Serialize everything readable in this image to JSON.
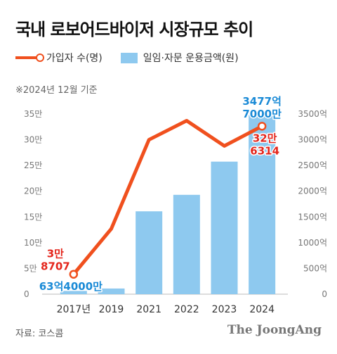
{
  "title": "국내 로보어드바이저 시장규모 추이",
  "legend": {
    "line_label": "가입자 수(명)",
    "bar_label": "일임·자문 운용금액(원)"
  },
  "note": "※2024년 12월 기준",
  "source": "자료: 코스콤",
  "brand": "The JoongAng",
  "colors": {
    "line": "#f0501e",
    "bar": "#8ec9ef",
    "accent_blue": "#1a8ad6",
    "accent_red": "#e4261c"
  },
  "chart_data": {
    "type": "bar",
    "categories": [
      "2017년",
      "2019",
      "2021",
      "2022",
      "2023",
      "2024"
    ],
    "series": [
      {
        "name": "가입자 수(명)",
        "type": "line",
        "axis": "left",
        "values": [
          38707,
          127000,
          300000,
          337000,
          288000,
          326314
        ]
      },
      {
        "name": "일임·자문 운용금액(원)",
        "type": "bar",
        "axis": "right",
        "values": [
          63.4,
          110,
          1610,
          1930,
          2575,
          3477.7
        ]
      }
    ],
    "left_axis": {
      "ylim": [
        0,
        350000
      ],
      "ticks": [
        {
          "v": 0,
          "t": "0"
        },
        {
          "v": 50000,
          "t": "5만"
        },
        {
          "v": 100000,
          "t": "10만"
        },
        {
          "v": 150000,
          "t": "15만"
        },
        {
          "v": 200000,
          "t": "20만"
        },
        {
          "v": 250000,
          "t": "25만"
        },
        {
          "v": 300000,
          "t": "30만"
        },
        {
          "v": 350000,
          "t": "35만"
        }
      ]
    },
    "right_axis": {
      "ylim": [
        0,
        3500
      ],
      "ticks": [
        {
          "v": 0,
          "t": "0"
        },
        {
          "v": 500,
          "t": "500억"
        },
        {
          "v": 1000,
          "t": "1000억"
        },
        {
          "v": 1500,
          "t": "1500억"
        },
        {
          "v": 2000,
          "t": "2000억"
        },
        {
          "v": 2500,
          "t": "2500억"
        },
        {
          "v": 3000,
          "t": "3000억"
        },
        {
          "v": 3500,
          "t": "3500억"
        }
      ]
    },
    "annotations": {
      "first_users": [
        "3만",
        "8707"
      ],
      "first_amount": "63억4000만",
      "last_amount": [
        "3477억",
        "7000만"
      ],
      "last_users": [
        "32만",
        "6314"
      ]
    },
    "grid": false
  }
}
